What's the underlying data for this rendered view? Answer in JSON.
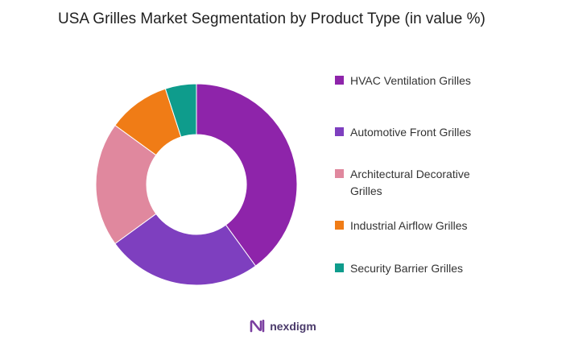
{
  "chart_data": {
    "type": "pie",
    "title": "USA Grilles Market Segmentation by Product Type (in value %)",
    "donut": true,
    "legend_position": "right",
    "series": [
      {
        "name": "HVAC Ventilation Grilles",
        "value": 40,
        "color": "#8E24AA"
      },
      {
        "name": "Automotive Front Grilles",
        "value": 25,
        "color": "#7E3FBF"
      },
      {
        "name": "Architectural Decorative Grilles",
        "value": 20,
        "color": "#E0889E"
      },
      {
        "name": "Industrial Airflow Grilles",
        "value": 10,
        "color": "#F07C16"
      },
      {
        "name": "Security Barrier Grilles",
        "value": 5,
        "color": "#0E9C8C"
      }
    ]
  },
  "brand": {
    "name": "nexdigm",
    "icon": "nexdigm-logo-icon",
    "color": "#7B3FA0"
  }
}
